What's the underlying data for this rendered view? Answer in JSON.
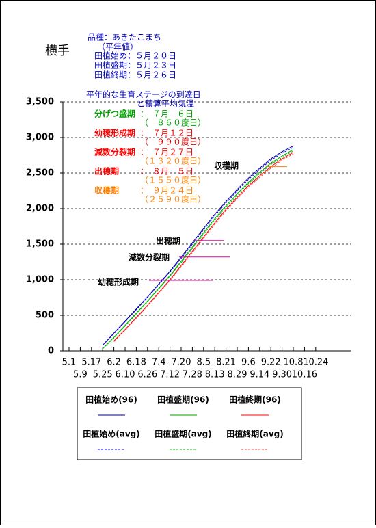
{
  "chart_data": {
    "type": "line",
    "location": "横手",
    "info": [
      "品種：あきたこまち",
      "（平年値）",
      "田植始め：５月２０日",
      "田植盛期：５月２３日",
      "田植終期：５月２６日"
    ],
    "title": [
      "平年的な生育ステージの到達日",
      "と積算平均気温"
    ],
    "categories": [
      "5.1",
      "5.9",
      "5.17",
      "5.25",
      "6.2",
      "6.10",
      "6.18",
      "6.26",
      "7.4",
      "7.12",
      "7.20",
      "7.28",
      "8.5",
      "8.13",
      "8.21",
      "8.29",
      "9.6",
      "9.14",
      "9.22",
      "9.30",
      "10.8",
      "10.16",
      "10.24"
    ],
    "ylim": [
      0,
      3500
    ],
    "yticks": [
      0,
      500,
      {
        "value": 1000,
        "label": "1,000"
      },
      {
        "value": 1500,
        "label": "1,500"
      },
      {
        "value": 2000,
        "label": "2,000"
      },
      {
        "value": 2500,
        "label": "2,500"
      },
      {
        "value": 3000,
        "label": "3,000"
      },
      {
        "value": 3500,
        "label": "3,500"
      }
    ],
    "grid": true,
    "series": [
      {
        "name": "田植始め(96)",
        "color": "#000080",
        "dashed": false,
        "values": [
          null,
          null,
          null,
          80,
          250,
          420,
          590,
          760,
          940,
          1120,
          1320,
          1520,
          1720,
          1920,
          2100,
          2270,
          2430,
          2570,
          2700,
          2800,
          2880,
          null,
          null
        ]
      },
      {
        "name": "田植盛期(96)",
        "color": "#00a000",
        "dashed": false,
        "values": [
          null,
          null,
          null,
          30,
          190,
          360,
          530,
          700,
          880,
          1060,
          1260,
          1460,
          1660,
          1860,
          2040,
          2210,
          2370,
          2510,
          2640,
          2740,
          2830,
          null,
          null
        ]
      },
      {
        "name": "田植終期(96)",
        "color": "#ff0000",
        "dashed": false,
        "values": [
          null,
          null,
          null,
          null,
          140,
          300,
          470,
          640,
          820,
          1000,
          1200,
          1400,
          1600,
          1800,
          1990,
          2160,
          2320,
          2460,
          2590,
          2700,
          2790,
          null,
          null
        ]
      },
      {
        "name": "田植始め(avg)",
        "color": "#0000ff",
        "dashed": true,
        "values": [
          null,
          null,
          null,
          80,
          240,
          410,
          580,
          750,
          930,
          1110,
          1300,
          1500,
          1700,
          1900,
          2080,
          2250,
          2410,
          2550,
          2680,
          2780,
          2860,
          null,
          null
        ]
      },
      {
        "name": "田植盛期(avg)",
        "color": "#00c000",
        "dashed": true,
        "values": [
          null,
          null,
          null,
          30,
          180,
          350,
          520,
          690,
          870,
          1050,
          1240,
          1440,
          1640,
          1840,
          2020,
          2190,
          2350,
          2490,
          2620,
          2720,
          2810,
          null,
          null
        ]
      },
      {
        "name": "田植終期(avg)",
        "color": "#ff4040",
        "dashed": true,
        "values": [
          null,
          null,
          null,
          null,
          130,
          290,
          460,
          630,
          810,
          990,
          1180,
          1380,
          1580,
          1780,
          1970,
          2140,
          2300,
          2440,
          2570,
          2680,
          2770,
          null,
          null
        ]
      }
    ],
    "stages": [
      {
        "name": "分げつ盛期",
        "date": "：　７月　６日",
        "values": [
          860
        ],
        "value_labels": [
          "（　８６０度日）"
        ],
        "color": "#00a000",
        "label_color": "#00a000",
        "line": false
      },
      {
        "name": "幼穂形成期",
        "date": "：　７月１２日",
        "values": [
          990
        ],
        "value_labels": [
          "（　９９０度日）"
        ],
        "color": "#ff0000",
        "label_color": "#e00000",
        "line": true
      },
      {
        "name": "減数分裂期",
        "date": "：　７月２７日",
        "values": [
          1320
        ],
        "value_labels": [
          "（１３２０度日）"
        ],
        "color": "#ff0000",
        "label_color": "#ff8000",
        "line": true
      },
      {
        "name": "出穂期",
        "date": "：　８月　５日",
        "values": [
          1550
        ],
        "value_labels": [
          "（１５５０度日）"
        ],
        "color": "#ff0000",
        "label_color": "#ff8000",
        "line": true
      },
      {
        "name": "収穫期",
        "date": "：　９月２４日",
        "values": [
          2590
        ],
        "value_labels": [
          "（２５９０度日）"
        ],
        "color": "#ff8000",
        "label_color": "#ff8000",
        "line": true
      }
    ]
  }
}
